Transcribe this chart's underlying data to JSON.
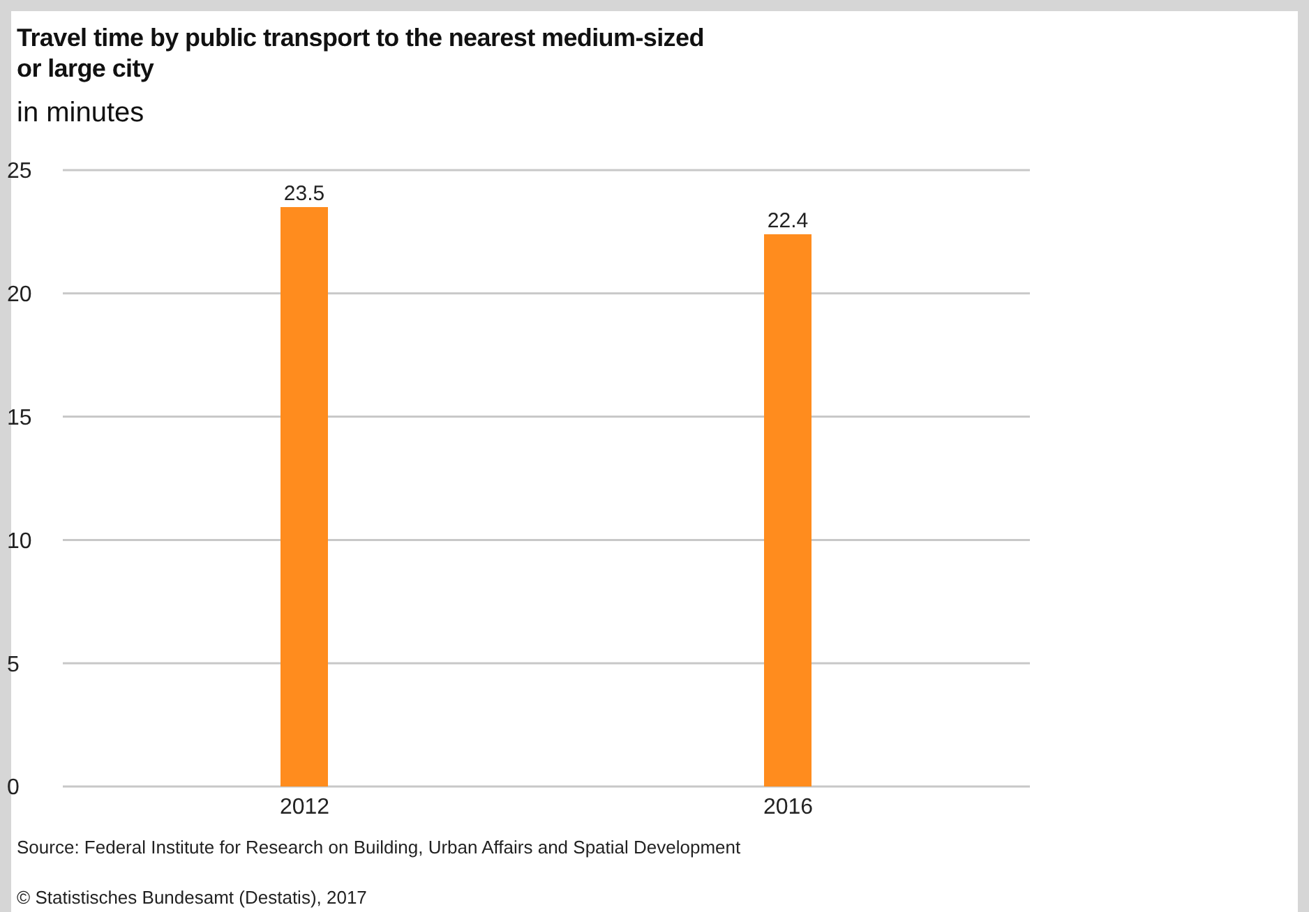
{
  "chart_data": {
    "type": "bar",
    "title": "Travel time by public transport to the nearest medium-sized\nor large city",
    "subtitle": "in minutes",
    "categories": [
      "2012",
      "2016"
    ],
    "values": [
      23.5,
      22.4
    ],
    "color": "#ff8c1e",
    "ylim": [
      0,
      25
    ],
    "yticks": [
      0,
      5,
      10,
      15,
      20,
      25
    ],
    "grid": "y",
    "data_labels": true,
    "annotations": [
      "Source: Federal Institute for Research on Building, Urban Affairs and Spatial Development",
      "© Statistisches Bundesamt (Destatis), 2017"
    ]
  }
}
